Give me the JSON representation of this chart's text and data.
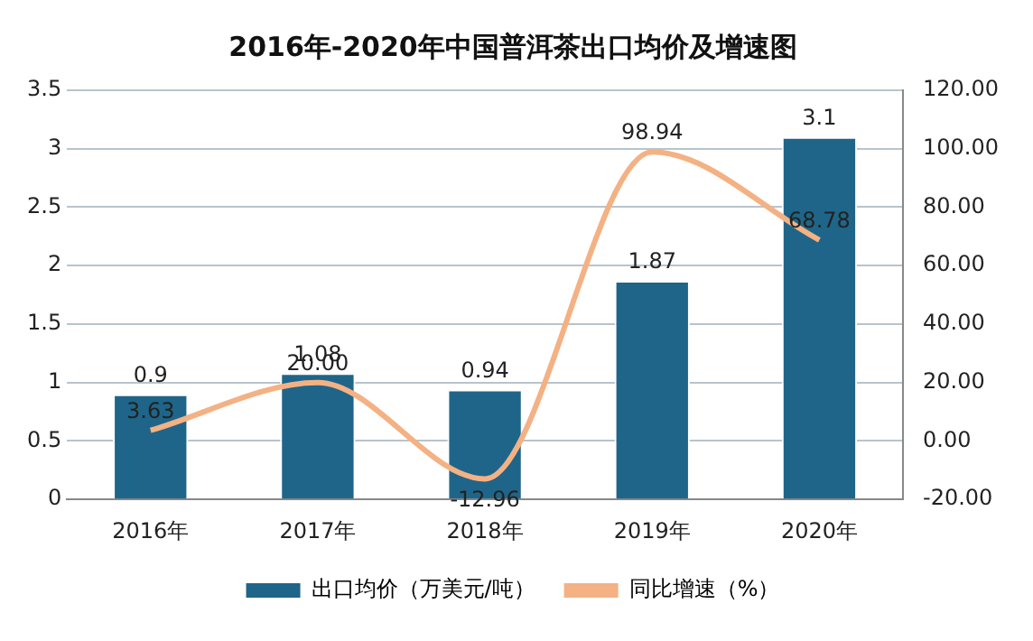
{
  "chart_data": {
    "type": "bar",
    "title": "2016年-2020年中国普洱茶出口均价及增速图",
    "categories": [
      "2016年",
      "2017年",
      "2018年",
      "2019年",
      "2020年"
    ],
    "series": [
      {
        "name": "出口均价（万美元/吨）",
        "color": "#1f6589",
        "values": [
          0.9,
          1.08,
          0.94,
          1.87,
          3.1
        ],
        "value_labels": [
          "0.9",
          "1.08",
          "0.94",
          "1.87",
          "3.1"
        ]
      },
      {
        "name": "同比增速（%）",
        "type": "line",
        "axis": "y2",
        "color": "#f4b183",
        "values": [
          3.63,
          20.0,
          -12.96,
          98.94,
          68.78
        ],
        "value_labels": [
          "3.63",
          "20.00",
          "-12.96",
          "98.94",
          "68.78"
        ]
      }
    ],
    "ylim": [
      0,
      3.5
    ],
    "yticks": [
      0,
      0.5,
      1,
      1.5,
      2,
      2.5,
      3,
      3.5
    ],
    "y2lim": [
      -20,
      120
    ],
    "y2ticks": [
      {
        "value": -20,
        "label": "-20.00"
      },
      {
        "value": 0,
        "label": "0.00"
      },
      {
        "value": 20,
        "label": "20.00"
      },
      {
        "value": 40,
        "label": "40.00"
      },
      {
        "value": 60,
        "label": "60.00"
      },
      {
        "value": 80,
        "label": "80.00"
      },
      {
        "value": 100,
        "label": "100.00"
      },
      {
        "value": 120,
        "label": "120.00"
      }
    ],
    "grid": "y",
    "legend": "bottom",
    "marker": "none"
  }
}
